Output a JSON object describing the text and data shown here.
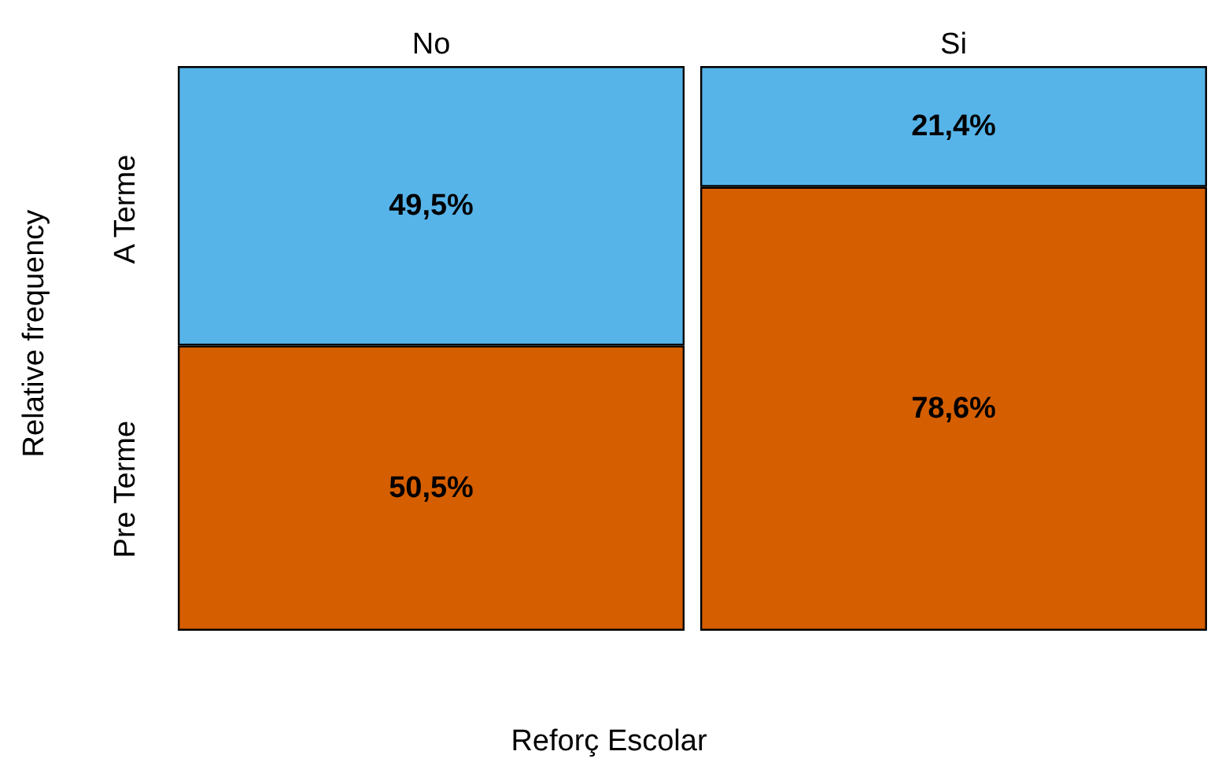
{
  "chart_data": {
    "type": "bar",
    "stacked": true,
    "xlabel": "Reforç Escolar",
    "ylabel": "Relative frequency",
    "categories": [
      "No",
      "Si"
    ],
    "ylim": [
      0,
      100
    ],
    "tick_labels": "x",
    "legend": false,
    "grid": false,
    "series": [
      {
        "name": "Pre Terme",
        "color": "#d55e00",
        "values": [
          50.5,
          78.6
        ],
        "value_labels": [
          "50,5%",
          "78,6%"
        ]
      },
      {
        "name": "A Terme",
        "color": "#56b4e9",
        "values": [
          49.5,
          21.4
        ],
        "value_labels": [
          "49,5%",
          "21,4%"
        ]
      }
    ]
  }
}
